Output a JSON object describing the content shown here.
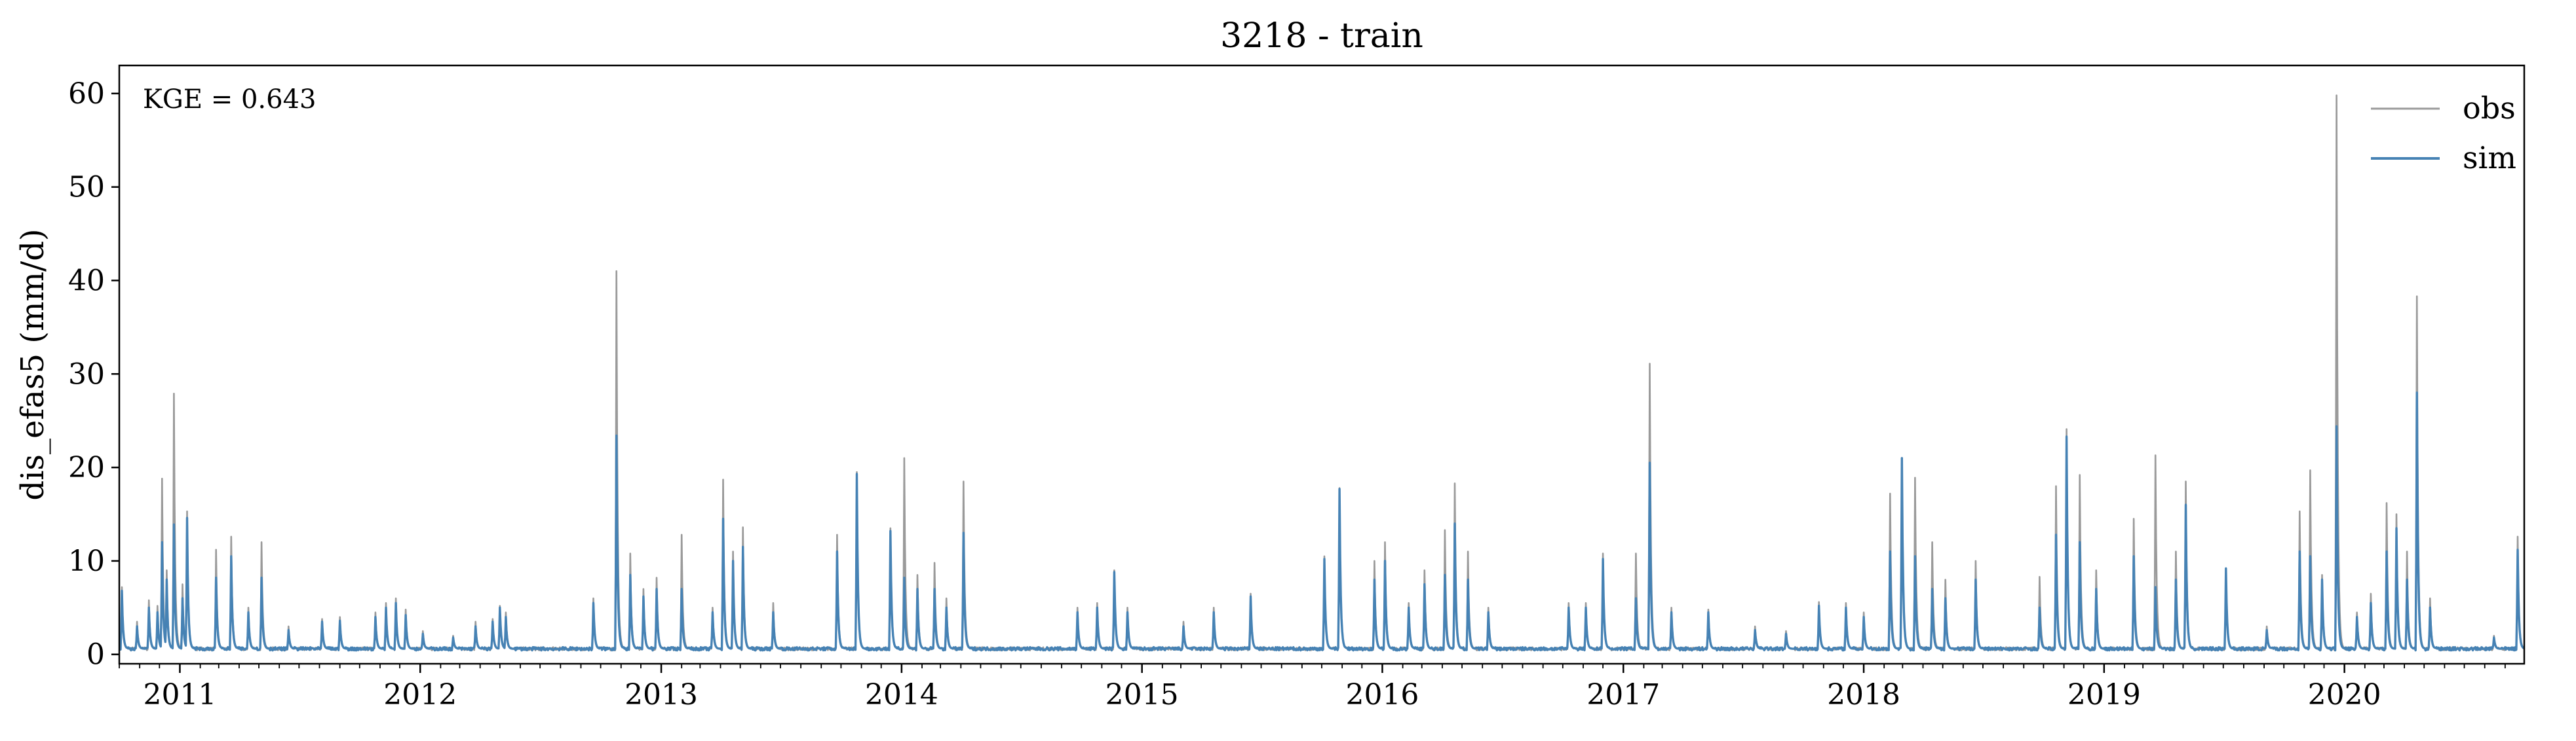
{
  "chart_data": {
    "type": "line",
    "title": "3218 - train",
    "xlabel": "",
    "ylabel": "dis_efas5 (mm/d)",
    "annotation": "KGE = 0.643",
    "xlim": [
      "2010-10-01",
      "2020-09-30"
    ],
    "ylim": [
      -1,
      63
    ],
    "y_ticks": [
      0,
      10,
      20,
      30,
      40,
      50,
      60
    ],
    "x_tick_labels": [
      "2011",
      "2012",
      "2013",
      "2014",
      "2015",
      "2016",
      "2017",
      "2018",
      "2019",
      "2020"
    ],
    "grid": false,
    "legend_position": "top-right",
    "baseflow": 0.6,
    "series": [
      {
        "name": "obs",
        "color": "#9a9a9a",
        "peaks": [
          [
            "2010-10-05",
            7.2
          ],
          [
            "2010-10-28",
            3.5
          ],
          [
            "2010-11-15",
            5.8
          ],
          [
            "2010-11-28",
            5.2
          ],
          [
            "2010-12-05",
            18.8
          ],
          [
            "2010-12-12",
            9.0
          ],
          [
            "2010-12-23",
            27.9
          ],
          [
            "2011-01-05",
            7.5
          ],
          [
            "2011-01-12",
            15.3
          ],
          [
            "2011-02-25",
            11.2
          ],
          [
            "2011-03-20",
            12.6
          ],
          [
            "2011-04-15",
            5.0
          ],
          [
            "2011-05-05",
            12.0
          ],
          [
            "2011-06-15",
            3.0
          ],
          [
            "2011-08-05",
            3.8
          ],
          [
            "2011-09-01",
            4.0
          ],
          [
            "2011-10-25",
            4.5
          ],
          [
            "2011-11-10",
            5.5
          ],
          [
            "2011-11-25",
            6.0
          ],
          [
            "2011-12-10",
            4.8
          ],
          [
            "2012-01-05",
            2.5
          ],
          [
            "2012-02-20",
            2.0
          ],
          [
            "2012-03-25",
            3.5
          ],
          [
            "2012-04-20",
            3.8
          ],
          [
            "2012-05-01",
            5.2
          ],
          [
            "2012-05-10",
            4.5
          ],
          [
            "2012-09-20",
            6.0
          ],
          [
            "2012-10-25",
            41.0
          ],
          [
            "2012-11-15",
            10.8
          ],
          [
            "2012-12-05",
            7.0
          ],
          [
            "2012-12-25",
            8.2
          ],
          [
            "2013-02-01",
            12.8
          ],
          [
            "2013-03-20",
            5.0
          ],
          [
            "2013-04-05",
            18.7
          ],
          [
            "2013-04-20",
            11.0
          ],
          [
            "2013-05-05",
            13.6
          ],
          [
            "2013-06-20",
            5.5
          ],
          [
            "2013-09-25",
            12.8
          ],
          [
            "2013-10-25",
            19.5
          ],
          [
            "2013-12-15",
            13.5
          ],
          [
            "2014-01-05",
            21.0
          ],
          [
            "2014-01-25",
            8.5
          ],
          [
            "2014-02-20",
            9.8
          ],
          [
            "2014-03-10",
            6.0
          ],
          [
            "2014-04-05",
            18.5
          ],
          [
            "2014-09-25",
            5.0
          ],
          [
            "2014-10-25",
            5.5
          ],
          [
            "2014-11-20",
            9.0
          ],
          [
            "2014-12-10",
            5.0
          ],
          [
            "2015-03-05",
            3.5
          ],
          [
            "2015-04-20",
            5.0
          ],
          [
            "2015-06-15",
            6.5
          ],
          [
            "2015-10-05",
            10.5
          ],
          [
            "2015-10-28",
            17.8
          ],
          [
            "2015-12-20",
            10.0
          ],
          [
            "2016-01-05",
            12.0
          ],
          [
            "2016-02-10",
            5.5
          ],
          [
            "2016-03-05",
            9.0
          ],
          [
            "2016-04-05",
            13.3
          ],
          [
            "2016-04-20",
            18.3
          ],
          [
            "2016-05-10",
            11.0
          ],
          [
            "2016-06-10",
            5.0
          ],
          [
            "2016-10-10",
            5.5
          ],
          [
            "2016-11-05",
            5.5
          ],
          [
            "2016-12-01",
            10.8
          ],
          [
            "2017-01-20",
            10.8
          ],
          [
            "2017-02-10",
            31.1
          ],
          [
            "2017-03-15",
            5.0
          ],
          [
            "2017-05-10",
            4.8
          ],
          [
            "2017-07-20",
            3.0
          ],
          [
            "2017-09-05",
            2.5
          ],
          [
            "2017-10-25",
            5.6
          ],
          [
            "2017-12-05",
            5.5
          ],
          [
            "2018-01-01",
            4.5
          ],
          [
            "2018-02-10",
            17.2
          ],
          [
            "2018-02-28",
            21.0
          ],
          [
            "2018-03-20",
            18.9
          ],
          [
            "2018-04-15",
            12.0
          ],
          [
            "2018-05-05",
            8.0
          ],
          [
            "2018-06-20",
            10.0
          ],
          [
            "2018-09-25",
            8.3
          ],
          [
            "2018-10-20",
            18.0
          ],
          [
            "2018-11-05",
            24.1
          ],
          [
            "2018-11-25",
            19.2
          ],
          [
            "2018-12-20",
            9.0
          ],
          [
            "2019-02-15",
            14.5
          ],
          [
            "2019-03-20",
            21.3
          ],
          [
            "2019-04-20",
            11.0
          ],
          [
            "2019-05-05",
            18.5
          ],
          [
            "2019-07-05",
            9.2
          ],
          [
            "2019-09-05",
            3.0
          ],
          [
            "2019-10-25",
            15.3
          ],
          [
            "2019-11-10",
            19.7
          ],
          [
            "2019-11-28",
            8.5
          ],
          [
            "2019-12-20",
            59.8
          ],
          [
            "2020-01-20",
            4.5
          ],
          [
            "2020-02-10",
            6.5
          ],
          [
            "2020-03-05",
            16.2
          ],
          [
            "2020-03-20",
            15.0
          ],
          [
            "2020-04-05",
            11.0
          ],
          [
            "2020-04-20",
            38.3
          ],
          [
            "2020-05-10",
            6.0
          ],
          [
            "2020-08-15",
            2.0
          ],
          [
            "2020-09-20",
            12.6
          ]
        ]
      },
      {
        "name": "sim",
        "color": "#4682b4",
        "peaks": [
          [
            "2010-10-05",
            6.8
          ],
          [
            "2010-10-28",
            3.0
          ],
          [
            "2010-11-15",
            5.0
          ],
          [
            "2010-11-28",
            4.5
          ],
          [
            "2010-12-05",
            12.0
          ],
          [
            "2010-12-12",
            8.0
          ],
          [
            "2010-12-23",
            13.9
          ],
          [
            "2011-01-05",
            6.0
          ],
          [
            "2011-01-12",
            14.6
          ],
          [
            "2011-02-25",
            8.2
          ],
          [
            "2011-03-20",
            10.5
          ],
          [
            "2011-04-15",
            4.5
          ],
          [
            "2011-05-05",
            8.2
          ],
          [
            "2011-06-15",
            2.6
          ],
          [
            "2011-08-05",
            3.5
          ],
          [
            "2011-09-01",
            3.6
          ],
          [
            "2011-10-25",
            4.0
          ],
          [
            "2011-11-10",
            5.0
          ],
          [
            "2011-11-25",
            5.5
          ],
          [
            "2011-12-10",
            4.2
          ],
          [
            "2012-01-05",
            2.2
          ],
          [
            "2012-02-20",
            1.8
          ],
          [
            "2012-03-25",
            3.0
          ],
          [
            "2012-04-20",
            3.5
          ],
          [
            "2012-05-01",
            5.0
          ],
          [
            "2012-05-10",
            4.0
          ],
          [
            "2012-09-20",
            5.5
          ],
          [
            "2012-10-25",
            23.4
          ],
          [
            "2012-11-15",
            8.5
          ],
          [
            "2012-12-05",
            6.2
          ],
          [
            "2012-12-25",
            7.0
          ],
          [
            "2013-02-01",
            7.0
          ],
          [
            "2013-03-20",
            4.5
          ],
          [
            "2013-04-05",
            14.5
          ],
          [
            "2013-04-20",
            10.0
          ],
          [
            "2013-05-05",
            11.5
          ],
          [
            "2013-06-20",
            4.5
          ],
          [
            "2013-09-25",
            11.0
          ],
          [
            "2013-10-25",
            19.3
          ],
          [
            "2013-12-15",
            13.2
          ],
          [
            "2014-01-05",
            8.2
          ],
          [
            "2014-01-25",
            7.0
          ],
          [
            "2014-02-20",
            7.0
          ],
          [
            "2014-03-10",
            5.0
          ],
          [
            "2014-04-05",
            13.0
          ],
          [
            "2014-09-25",
            4.5
          ],
          [
            "2014-10-25",
            5.0
          ],
          [
            "2014-11-20",
            8.8
          ],
          [
            "2014-12-10",
            4.5
          ],
          [
            "2015-03-05",
            3.0
          ],
          [
            "2015-04-20",
            4.5
          ],
          [
            "2015-06-15",
            6.2
          ],
          [
            "2015-10-05",
            10.2
          ],
          [
            "2015-10-28",
            17.7
          ],
          [
            "2015-12-20",
            8.0
          ],
          [
            "2016-01-05",
            10.0
          ],
          [
            "2016-02-10",
            5.0
          ],
          [
            "2016-03-05",
            7.5
          ],
          [
            "2016-04-05",
            8.5
          ],
          [
            "2016-04-20",
            14.0
          ],
          [
            "2016-05-10",
            8.0
          ],
          [
            "2016-06-10",
            4.5
          ],
          [
            "2016-10-10",
            5.0
          ],
          [
            "2016-11-05",
            5.0
          ],
          [
            "2016-12-01",
            10.2
          ],
          [
            "2017-01-20",
            6.0
          ],
          [
            "2017-02-10",
            20.5
          ],
          [
            "2017-03-15",
            4.5
          ],
          [
            "2017-05-10",
            4.5
          ],
          [
            "2017-07-20",
            2.6
          ],
          [
            "2017-09-05",
            2.2
          ],
          [
            "2017-10-25",
            5.2
          ],
          [
            "2017-12-05",
            5.0
          ],
          [
            "2018-01-01",
            4.0
          ],
          [
            "2018-02-10",
            11.0
          ],
          [
            "2018-02-28",
            21.0
          ],
          [
            "2018-03-20",
            10.5
          ],
          [
            "2018-04-15",
            7.0
          ],
          [
            "2018-05-05",
            6.0
          ],
          [
            "2018-06-20",
            8.0
          ],
          [
            "2018-09-25",
            5.0
          ],
          [
            "2018-10-20",
            12.8
          ],
          [
            "2018-11-05",
            23.3
          ],
          [
            "2018-11-25",
            12.0
          ],
          [
            "2018-12-20",
            7.0
          ],
          [
            "2019-02-15",
            10.5
          ],
          [
            "2019-03-20",
            7.2
          ],
          [
            "2019-04-20",
            8.0
          ],
          [
            "2019-05-05",
            16.0
          ],
          [
            "2019-07-05",
            9.2
          ],
          [
            "2019-09-05",
            2.6
          ],
          [
            "2019-10-25",
            11.0
          ],
          [
            "2019-11-10",
            10.5
          ],
          [
            "2019-11-28",
            8.0
          ],
          [
            "2019-12-20",
            24.4
          ],
          [
            "2020-01-20",
            4.0
          ],
          [
            "2020-02-10",
            5.5
          ],
          [
            "2020-03-05",
            11.0
          ],
          [
            "2020-03-20",
            13.5
          ],
          [
            "2020-04-05",
            8.0
          ],
          [
            "2020-04-20",
            28.0
          ],
          [
            "2020-05-10",
            5.0
          ],
          [
            "2020-08-15",
            1.8
          ],
          [
            "2020-09-20",
            11.2
          ]
        ]
      }
    ]
  }
}
